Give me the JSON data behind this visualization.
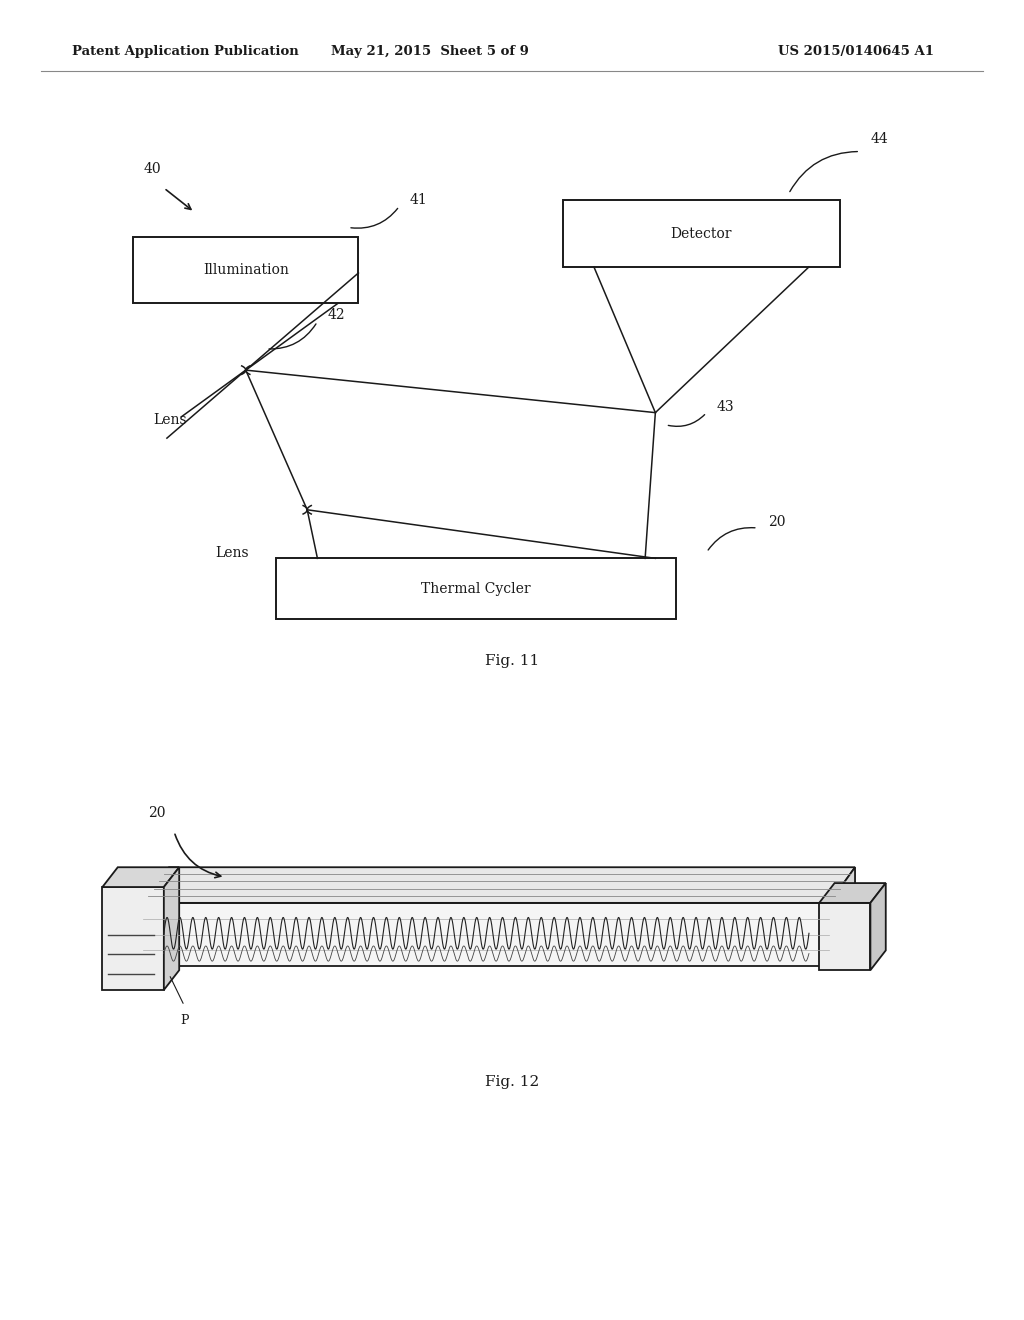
{
  "bg_color": "#ffffff",
  "header_left": "Patent Application Publication",
  "header_mid": "May 21, 2015  Sheet 5 of 9",
  "header_right": "US 2015/0140645 A1",
  "fig11_label": "Fig. 11",
  "fig12_label": "Fig. 12",
  "line_color": "#1a1a1a",
  "text_color": "#1a1a1a"
}
